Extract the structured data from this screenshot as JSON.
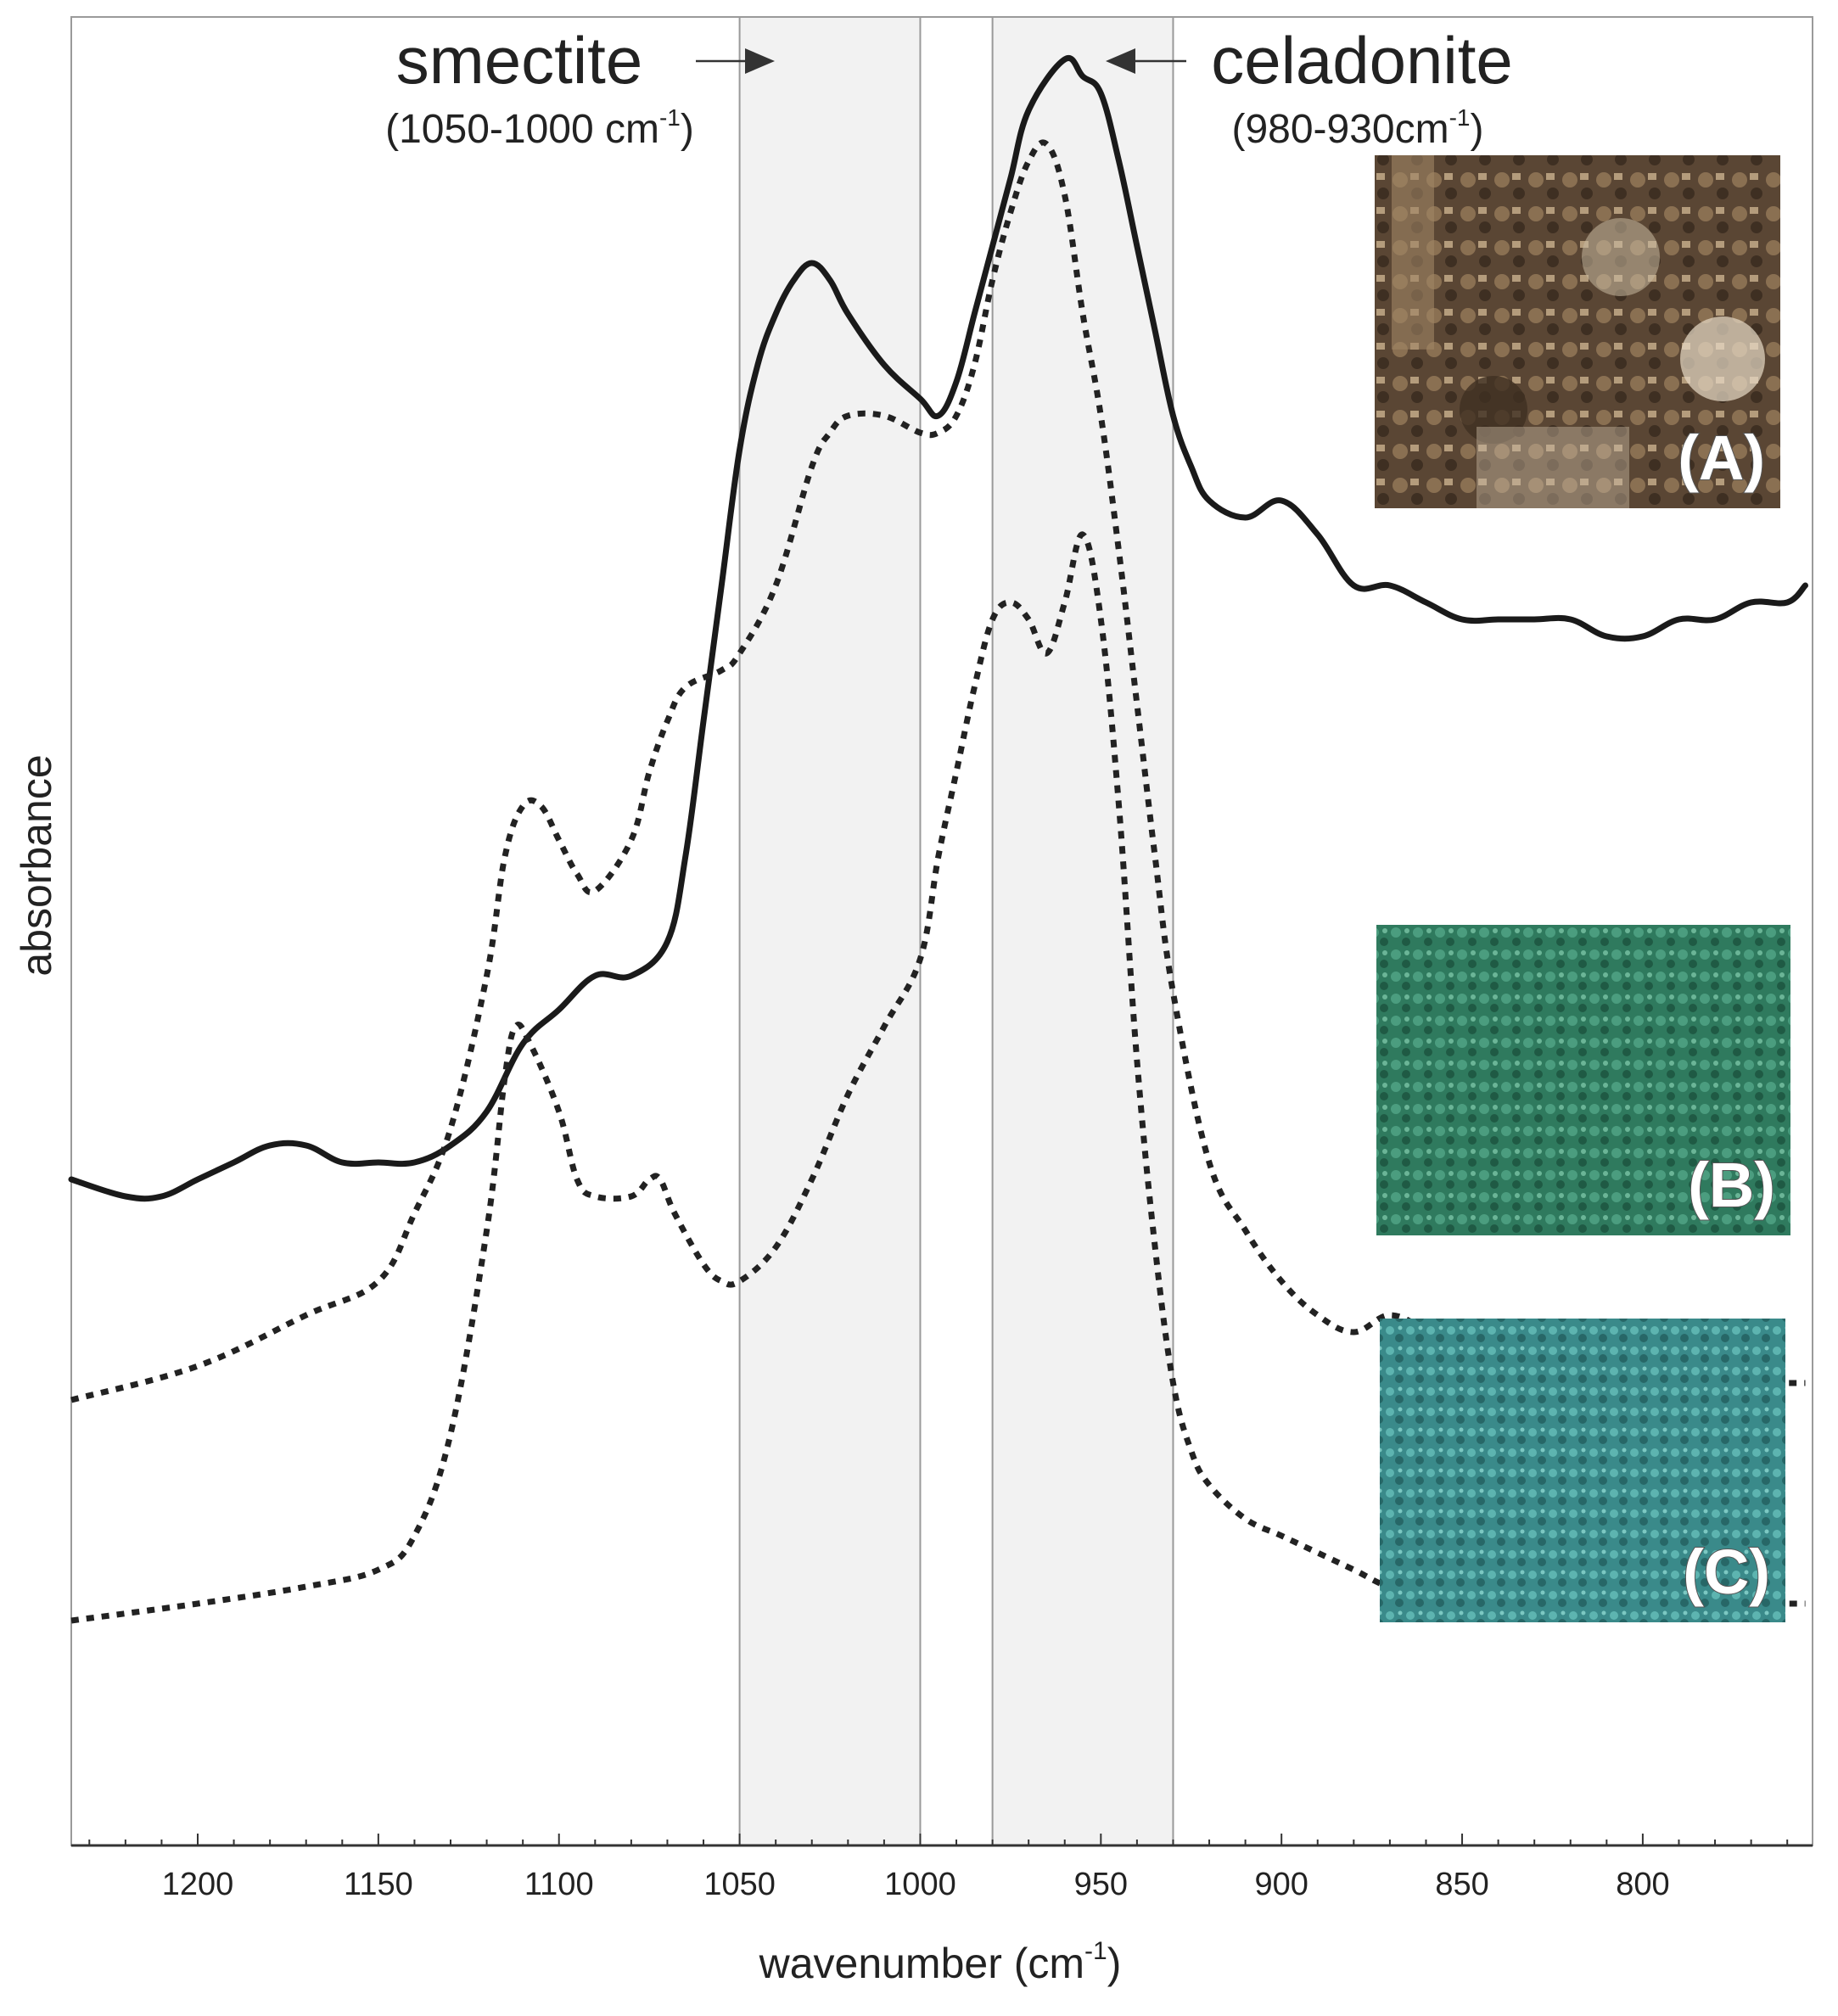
{
  "chart_data": {
    "type": "line",
    "title": "",
    "xlabel": "wavenumber (cm",
    "xlabel_sup": "-1",
    "xlabel_close": ")",
    "ylabel": "absorbance",
    "xlim": [
      1235,
      753
    ],
    "x_reversed": true,
    "ylim": [
      0,
      1
    ],
    "y_ticks_shown": false,
    "grid": false,
    "x_ticks": [
      "1200",
      "1150",
      "1100",
      "1050",
      "1000",
      "950",
      "900",
      "850",
      "800"
    ],
    "x_tick_values": [
      1200,
      1150,
      1100,
      1050,
      1000,
      950,
      900,
      850,
      800
    ],
    "bands": [
      {
        "from": 1050,
        "to": 1000,
        "label": "smectite",
        "range_open": "(1050-1000 cm",
        "range_sup": "-1",
        "range_close": ")",
        "arrow": "right"
      },
      {
        "from": 980,
        "to": 930,
        "label": "celadonite",
        "range_open": "(980-930cm",
        "range_sup": "-1",
        "range_close": ")",
        "arrow": "left"
      }
    ],
    "series": [
      {
        "id": "A",
        "style": "solid",
        "x": [
          1235,
          1220,
          1210,
          1200,
          1190,
          1180,
          1170,
          1160,
          1150,
          1140,
          1130,
          1120,
          1110,
          1100,
          1090,
          1080,
          1070,
          1065,
          1060,
          1055,
          1050,
          1045,
          1040,
          1035,
          1030,
          1025,
          1020,
          1010,
          1000,
          995,
          990,
          985,
          980,
          975,
          970,
          960,
          955,
          950,
          945,
          940,
          935,
          930,
          925,
          920,
          910,
          900,
          890,
          880,
          870,
          860,
          850,
          840,
          830,
          820,
          810,
          800,
          790,
          780,
          770,
          760,
          755
        ],
        "y": [
          0.33,
          0.32,
          0.32,
          0.33,
          0.34,
          0.35,
          0.35,
          0.34,
          0.34,
          0.34,
          0.35,
          0.37,
          0.41,
          0.43,
          0.45,
          0.45,
          0.47,
          0.52,
          0.6,
          0.68,
          0.76,
          0.81,
          0.84,
          0.86,
          0.87,
          0.86,
          0.84,
          0.81,
          0.79,
          0.78,
          0.8,
          0.84,
          0.88,
          0.92,
          0.96,
          0.99,
          0.98,
          0.97,
          0.93,
          0.88,
          0.83,
          0.78,
          0.75,
          0.73,
          0.72,
          0.73,
          0.71,
          0.68,
          0.68,
          0.67,
          0.66,
          0.66,
          0.66,
          0.66,
          0.65,
          0.65,
          0.66,
          0.66,
          0.67,
          0.67,
          0.68
        ]
      },
      {
        "id": "B",
        "style": "dotted",
        "x": [
          1235,
          1200,
          1170,
          1150,
          1140,
          1130,
          1120,
          1115,
          1110,
          1105,
          1100,
          1095,
          1090,
          1080,
          1075,
          1070,
          1065,
          1055,
          1050,
          1040,
          1030,
          1025,
          1020,
          1010,
          1000,
          995,
          990,
          985,
          980,
          975,
          970,
          965,
          960,
          955,
          950,
          945,
          940,
          935,
          930,
          920,
          910,
          900,
          890,
          880,
          870,
          860,
          850,
          840,
          830,
          820,
          810,
          800,
          790,
          780,
          770,
          760,
          755
        ],
        "y": [
          0.2,
          0.22,
          0.25,
          0.27,
          0.31,
          0.36,
          0.45,
          0.52,
          0.55,
          0.55,
          0.53,
          0.51,
          0.5,
          0.53,
          0.57,
          0.6,
          0.62,
          0.63,
          0.64,
          0.68,
          0.75,
          0.77,
          0.78,
          0.78,
          0.77,
          0.77,
          0.78,
          0.81,
          0.86,
          0.9,
          0.93,
          0.94,
          0.91,
          0.84,
          0.78,
          0.7,
          0.61,
          0.52,
          0.44,
          0.34,
          0.3,
          0.27,
          0.25,
          0.24,
          0.25,
          0.24,
          0.22,
          0.21,
          0.21,
          0.21,
          0.22,
          0.22,
          0.22,
          0.21,
          0.21,
          0.21,
          0.21
        ]
      },
      {
        "id": "C",
        "style": "dotted",
        "x": [
          1235,
          1200,
          1170,
          1150,
          1140,
          1130,
          1120,
          1115,
          1112,
          1108,
          1100,
          1095,
          1090,
          1080,
          1075,
          1072,
          1068,
          1060,
          1055,
          1050,
          1040,
          1030,
          1020,
          1010,
          1000,
          995,
          990,
          985,
          980,
          975,
          970,
          965,
          960,
          955,
          950,
          945,
          940,
          935,
          930,
          925,
          920,
          910,
          900,
          890,
          880,
          870,
          860,
          850,
          840,
          830,
          820,
          810,
          805,
          800,
          795,
          790,
          780,
          770,
          760,
          755
        ],
        "y": [
          0.07,
          0.08,
          0.09,
          0.1,
          0.12,
          0.18,
          0.3,
          0.39,
          0.42,
          0.41,
          0.37,
          0.33,
          0.32,
          0.32,
          0.33,
          0.33,
          0.31,
          0.28,
          0.27,
          0.27,
          0.29,
          0.33,
          0.38,
          0.42,
          0.46,
          0.52,
          0.57,
          0.62,
          0.66,
          0.67,
          0.66,
          0.64,
          0.67,
          0.71,
          0.66,
          0.55,
          0.4,
          0.29,
          0.21,
          0.17,
          0.15,
          0.13,
          0.12,
          0.11,
          0.1,
          0.09,
          0.09,
          0.09,
          0.08,
          0.08,
          0.08,
          0.09,
          0.1,
          0.11,
          0.1,
          0.09,
          0.08,
          0.08,
          0.08,
          0.08
        ]
      }
    ]
  },
  "insets": [
    {
      "label": "(A)",
      "icon": "fresco-painting-image",
      "colors": [
        "#5a4634",
        "#a08566",
        "#3e2f22",
        "#c8b9a1"
      ]
    },
    {
      "label": "(B)",
      "icon": "green-earth-pigment-image",
      "colors": [
        "#2f7a5e",
        "#4b9d7f",
        "#1f5a44"
      ]
    },
    {
      "label": "(C)",
      "icon": "blue-green-pigment-image",
      "colors": [
        "#3a8a8a",
        "#5db4b0",
        "#276767"
      ]
    }
  ]
}
